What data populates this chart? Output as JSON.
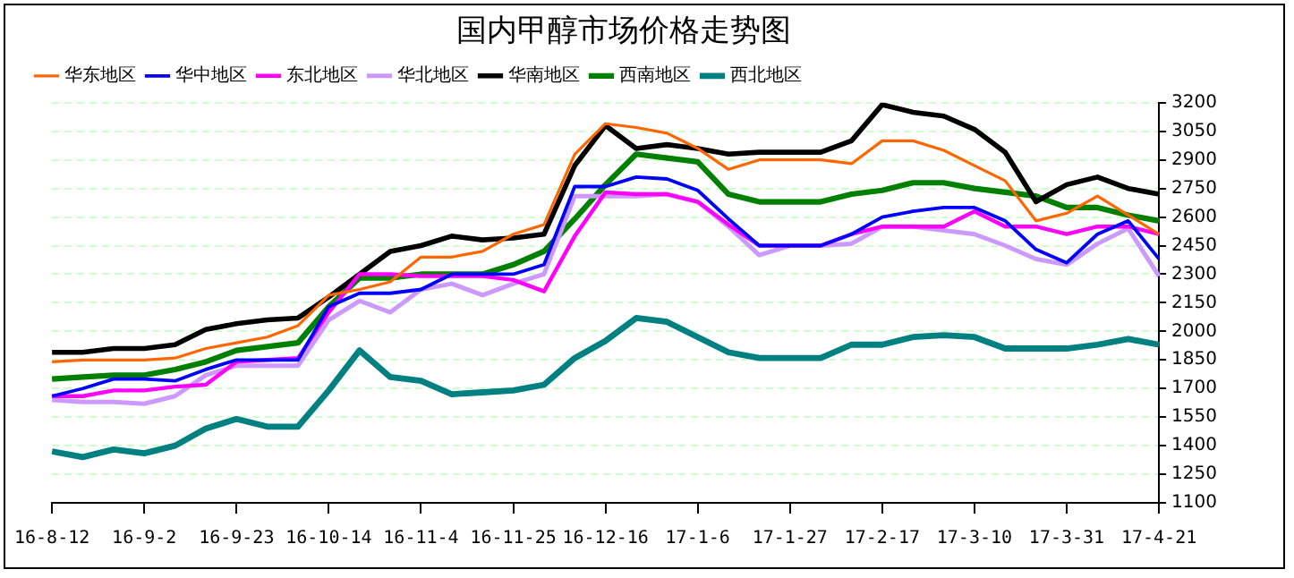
{
  "chart_data": {
    "type": "line",
    "title": "国内甲醇市场价格走势图",
    "legend": "top",
    "grid": "y",
    "marker": "none",
    "line_style": "solid",
    "categories": [
      "16-8-12",
      null,
      null,
      "16-9-2",
      null,
      null,
      "16-9-23",
      null,
      null,
      "16-10-14",
      null,
      null,
      "16-11-4",
      null,
      null,
      "16-11-25",
      null,
      null,
      "16-12-16",
      null,
      null,
      "17-1-6",
      null,
      null,
      "17-1-27",
      null,
      null,
      "17-2-17",
      null,
      null,
      "17-3-10",
      null,
      null,
      "17-3-31",
      null,
      null,
      "17-4-21"
    ],
    "ylim": [
      1100,
      3200
    ],
    "yticks": [
      1100,
      1250,
      1400,
      1550,
      1700,
      1850,
      2000,
      2150,
      2300,
      2450,
      2600,
      2750,
      2900,
      3050,
      3200
    ],
    "series": [
      {
        "name": "华东地区",
        "color": "#ff6600",
        "values": [
          1840,
          1850,
          1850,
          1850,
          1860,
          1910,
          1940,
          1970,
          2030,
          2190,
          2220,
          2260,
          2390,
          2390,
          2420,
          2510,
          2560,
          2930,
          3090,
          3070,
          3040,
          2960,
          2850,
          2900,
          2900,
          2900,
          2880,
          3000,
          3000,
          2950,
          2870,
          2790,
          2580,
          2620,
          2710,
          2610,
          2510
        ]
      },
      {
        "name": "华中地区",
        "color": "#0000ff",
        "values": [
          1660,
          1700,
          1750,
          1750,
          1740,
          1800,
          1850,
          1850,
          1850,
          2130,
          2200,
          2200,
          2220,
          2300,
          2300,
          2300,
          2350,
          2760,
          2760,
          2810,
          2800,
          2740,
          2590,
          2450,
          2450,
          2450,
          2510,
          2600,
          2630,
          2650,
          2650,
          2580,
          2430,
          2360,
          2510,
          2580,
          2380
        ]
      },
      {
        "name": "东北地区",
        "color": "#ff00ff",
        "values": [
          1660,
          1660,
          1690,
          1690,
          1710,
          1720,
          1840,
          1850,
          1860,
          2100,
          2300,
          2300,
          2290,
          2290,
          2290,
          2270,
          2210,
          2500,
          2730,
          2720,
          2720,
          2680,
          2560,
          2450,
          2450,
          2450,
          2510,
          2550,
          2550,
          2550,
          2630,
          2550,
          2550,
          2510,
          2550,
          2550,
          2510
        ]
      },
      {
        "name": "华北地区",
        "color": "#cc99ff",
        "values": [
          1640,
          1630,
          1630,
          1620,
          1660,
          1770,
          1820,
          1820,
          1820,
          2060,
          2160,
          2100,
          2220,
          2250,
          2190,
          2250,
          2300,
          2710,
          2710,
          2710,
          2720,
          2680,
          2550,
          2400,
          2450,
          2450,
          2460,
          2550,
          2550,
          2530,
          2510,
          2450,
          2380,
          2350,
          2460,
          2540,
          2290
        ]
      },
      {
        "name": "华南地区",
        "color": "#000000",
        "values": [
          1890,
          1890,
          1910,
          1910,
          1930,
          2010,
          2040,
          2060,
          2070,
          2180,
          2300,
          2420,
          2450,
          2500,
          2480,
          2490,
          2510,
          2870,
          3080,
          2960,
          2980,
          2960,
          2930,
          2940,
          2940,
          2940,
          3000,
          3190,
          3150,
          3130,
          3060,
          2940,
          2680,
          2770,
          2810,
          2750,
          2720
        ]
      },
      {
        "name": "西南地区",
        "color": "#008000",
        "values": [
          1750,
          1760,
          1770,
          1770,
          1800,
          1840,
          1900,
          1920,
          1940,
          2130,
          2280,
          2280,
          2300,
          2300,
          2300,
          2350,
          2420,
          2590,
          2770,
          2930,
          2910,
          2890,
          2720,
          2680,
          2680,
          2680,
          2720,
          2740,
          2780,
          2780,
          2750,
          2730,
          2710,
          2650,
          2650,
          2610,
          2580
        ]
      },
      {
        "name": "西北地区",
        "color": "#008080",
        "values": [
          1370,
          1340,
          1380,
          1360,
          1400,
          1490,
          1540,
          1500,
          1500,
          1690,
          1900,
          1760,
          1740,
          1670,
          1680,
          1690,
          1720,
          1860,
          1950,
          2070,
          2050,
          1970,
          1890,
          1860,
          1860,
          1860,
          1930,
          1930,
          1970,
          1980,
          1970,
          1910,
          1910,
          1910,
          1930,
          1960,
          1930
        ]
      }
    ]
  }
}
